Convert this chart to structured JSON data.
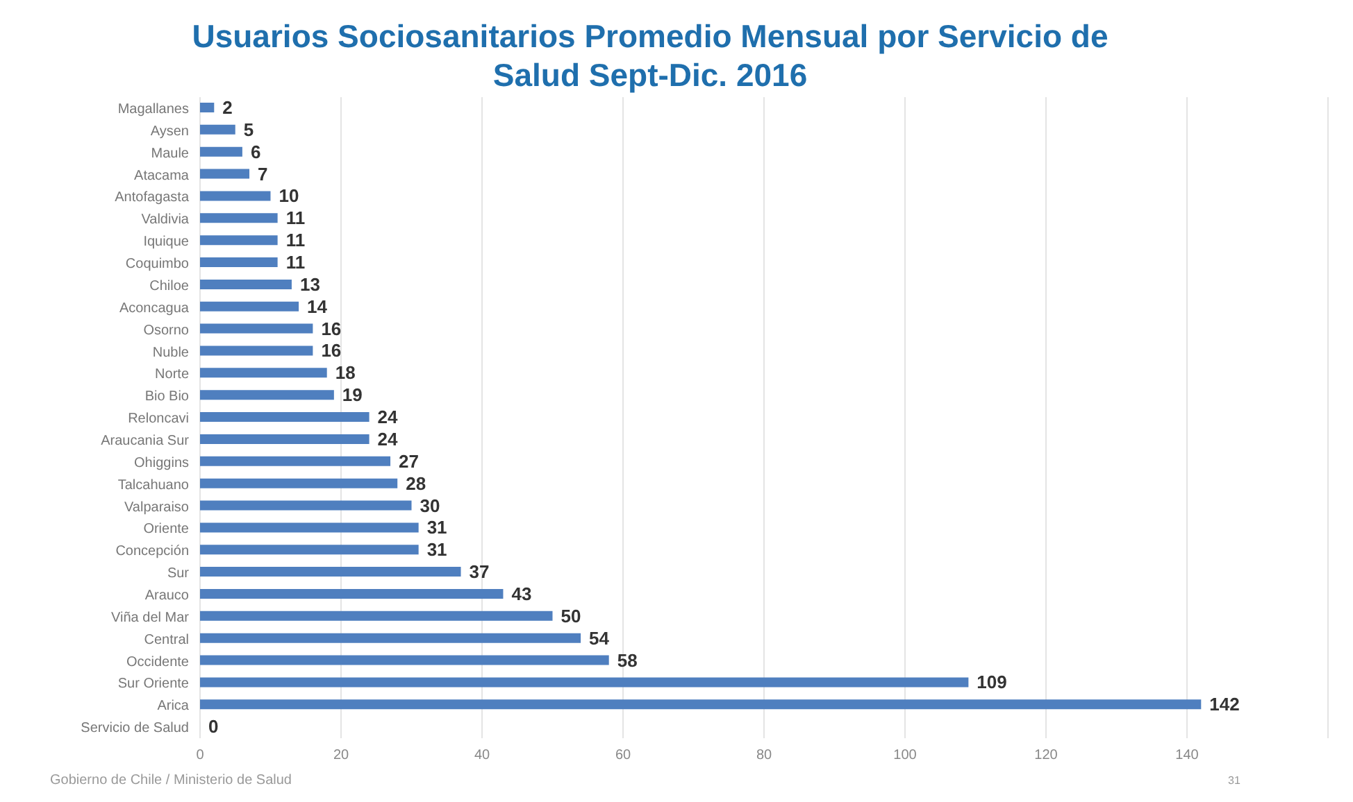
{
  "chart_data": {
    "type": "bar",
    "orientation": "horizontal",
    "title": "Usuarios Sociosanitarios Promedio Mensual por Servicio de Salud Sept-Dic. 2016",
    "categories": [
      "Magallanes",
      "Aysen",
      "Maule",
      "Atacama",
      "Antofagasta",
      "Valdivia",
      "Iquique",
      "Coquimbo",
      "Chiloe",
      "Aconcagua",
      "Osorno",
      "Nuble",
      "Norte",
      "Bio Bio",
      "Reloncavi",
      "Araucania Sur",
      "Ohiggins",
      "Talcahuano",
      "Valparaiso",
      "Oriente",
      "Concepción",
      "Sur",
      "Arauco",
      "Viña del Mar",
      "Central",
      "Occidente",
      "Sur Oriente",
      "Arica",
      "Servicio de Salud"
    ],
    "values": [
      2,
      5,
      6,
      7,
      10,
      11,
      11,
      11,
      13,
      14,
      16,
      16,
      18,
      19,
      24,
      24,
      27,
      28,
      30,
      31,
      31,
      37,
      43,
      50,
      54,
      58,
      109,
      142,
      0
    ],
    "color": "#4f7fbf",
    "data_labels": true,
    "grid": "x",
    "xlim": [
      0,
      160
    ],
    "xticks": [
      0,
      20,
      40,
      60,
      80,
      100,
      120,
      140,
      {
        "value": 160,
        "label": null
      }
    ],
    "annotations": [
      "Gobierno de Chile / Ministerio de Salud",
      "31"
    ]
  }
}
